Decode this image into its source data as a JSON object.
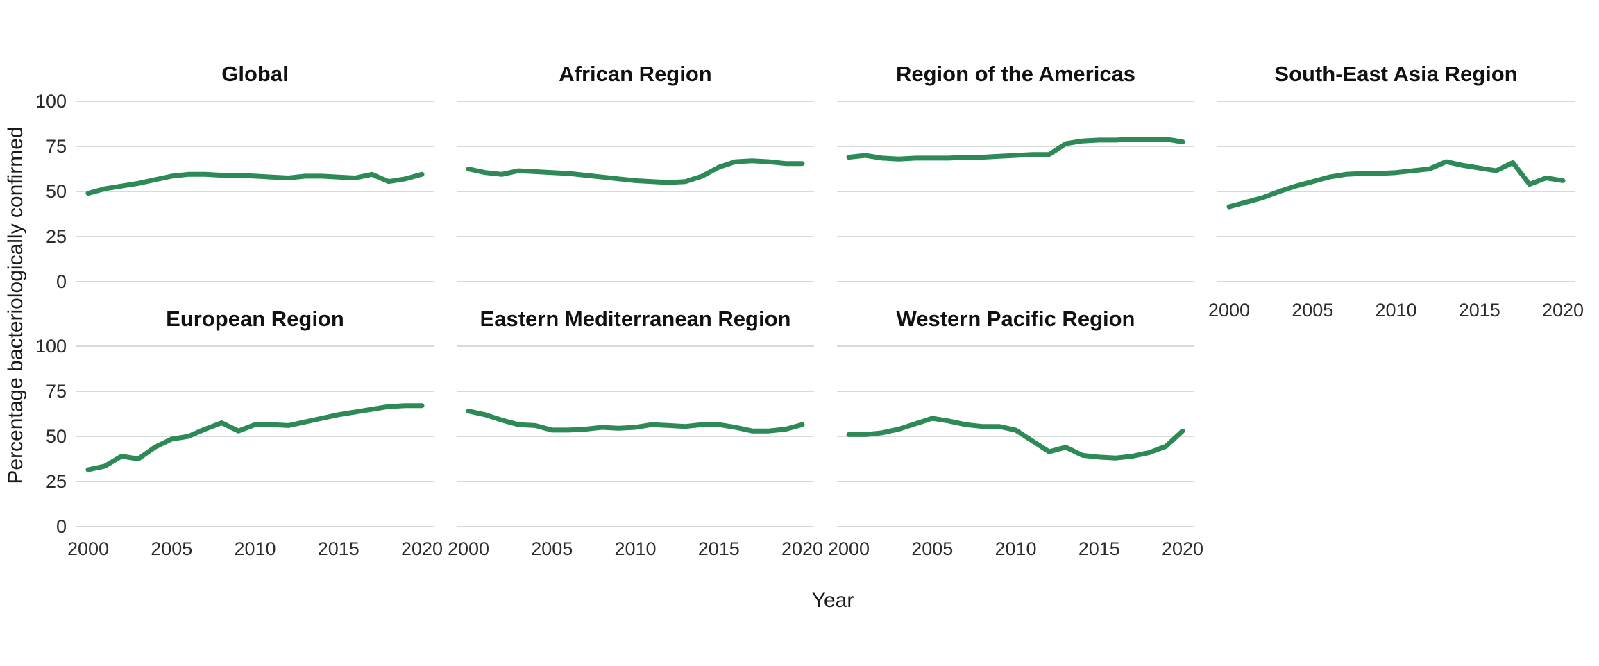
{
  "figure": {
    "background": "#ffffff",
    "colors": {
      "line": "#2d8a57",
      "grid": "#d9d9d9",
      "text": "#1a1a1a"
    }
  },
  "chart_data": {
    "type": "line",
    "title": "",
    "xlabel": "Year",
    "ylabel": "Percentage bacteriologically confirmed",
    "ylim": [
      0,
      100
    ],
    "y_ticks": [
      0,
      25,
      50,
      75,
      100
    ],
    "x_ticks": [
      2000,
      2005,
      2010,
      2015,
      2020
    ],
    "grid": "horizontal-only",
    "legend": "none",
    "line_color": "#2d8a57",
    "x": [
      2000,
      2001,
      2002,
      2003,
      2004,
      2005,
      2006,
      2007,
      2008,
      2009,
      2010,
      2011,
      2012,
      2013,
      2014,
      2015,
      2016,
      2017,
      2018,
      2019,
      2020
    ],
    "facets": [
      {
        "title": "Global",
        "row": 0,
        "col": 0,
        "values": [
          49,
          51.5,
          53,
          54.5,
          56.5,
          58.5,
          59.5,
          59.5,
          59,
          59,
          58.5,
          58,
          57.5,
          58.5,
          58.5,
          58,
          57.5,
          59.5,
          55.5,
          57,
          59.5
        ]
      },
      {
        "title": "African Region",
        "row": 0,
        "col": 1,
        "values": [
          62.5,
          60.5,
          59.5,
          61.5,
          61,
          60.5,
          60,
          59,
          58,
          57,
          56,
          55.5,
          55,
          55.5,
          58.5,
          63.5,
          66.5,
          67,
          66.5,
          65.5,
          65.5
        ]
      },
      {
        "title": "Region of the Americas",
        "row": 0,
        "col": 2,
        "values": [
          69,
          70,
          68.5,
          68,
          68.5,
          68.5,
          68.5,
          69,
          69,
          69.5,
          70,
          70.5,
          70.5,
          76.5,
          78,
          78.5,
          78.5,
          79,
          79,
          79,
          77.5
        ]
      },
      {
        "title": "South-East Asia Region",
        "row": 0,
        "col": 3,
        "values": [
          41.5,
          44,
          46.5,
          50,
          53,
          55.5,
          58,
          59.5,
          60,
          60,
          60.5,
          61.5,
          62.5,
          66.5,
          64.5,
          63,
          61.5,
          66,
          54,
          57.5,
          56
        ]
      },
      {
        "title": "European Region",
        "row": 1,
        "col": 0,
        "values": [
          31.5,
          33.5,
          39,
          37.5,
          44,
          48.5,
          50,
          54,
          57.5,
          53,
          56.5,
          56.5,
          56,
          58,
          60,
          62,
          63.5,
          65,
          66.5,
          67,
          67
        ]
      },
      {
        "title": "Eastern Mediterranean Region",
        "row": 1,
        "col": 1,
        "values": [
          64,
          62,
          59,
          56.5,
          56,
          53.5,
          53.5,
          54,
          55,
          54.5,
          55,
          56.5,
          56,
          55.5,
          56.5,
          56.5,
          55,
          53,
          53,
          54,
          56.5
        ]
      },
      {
        "title": "Western Pacific Region",
        "row": 1,
        "col": 2,
        "values": [
          51,
          51,
          52,
          54,
          57,
          60,
          58.5,
          56.5,
          55.5,
          55.5,
          53.5,
          47.5,
          41.5,
          44,
          39.5,
          38.5,
          38,
          39,
          41,
          44.5,
          53
        ]
      }
    ]
  }
}
